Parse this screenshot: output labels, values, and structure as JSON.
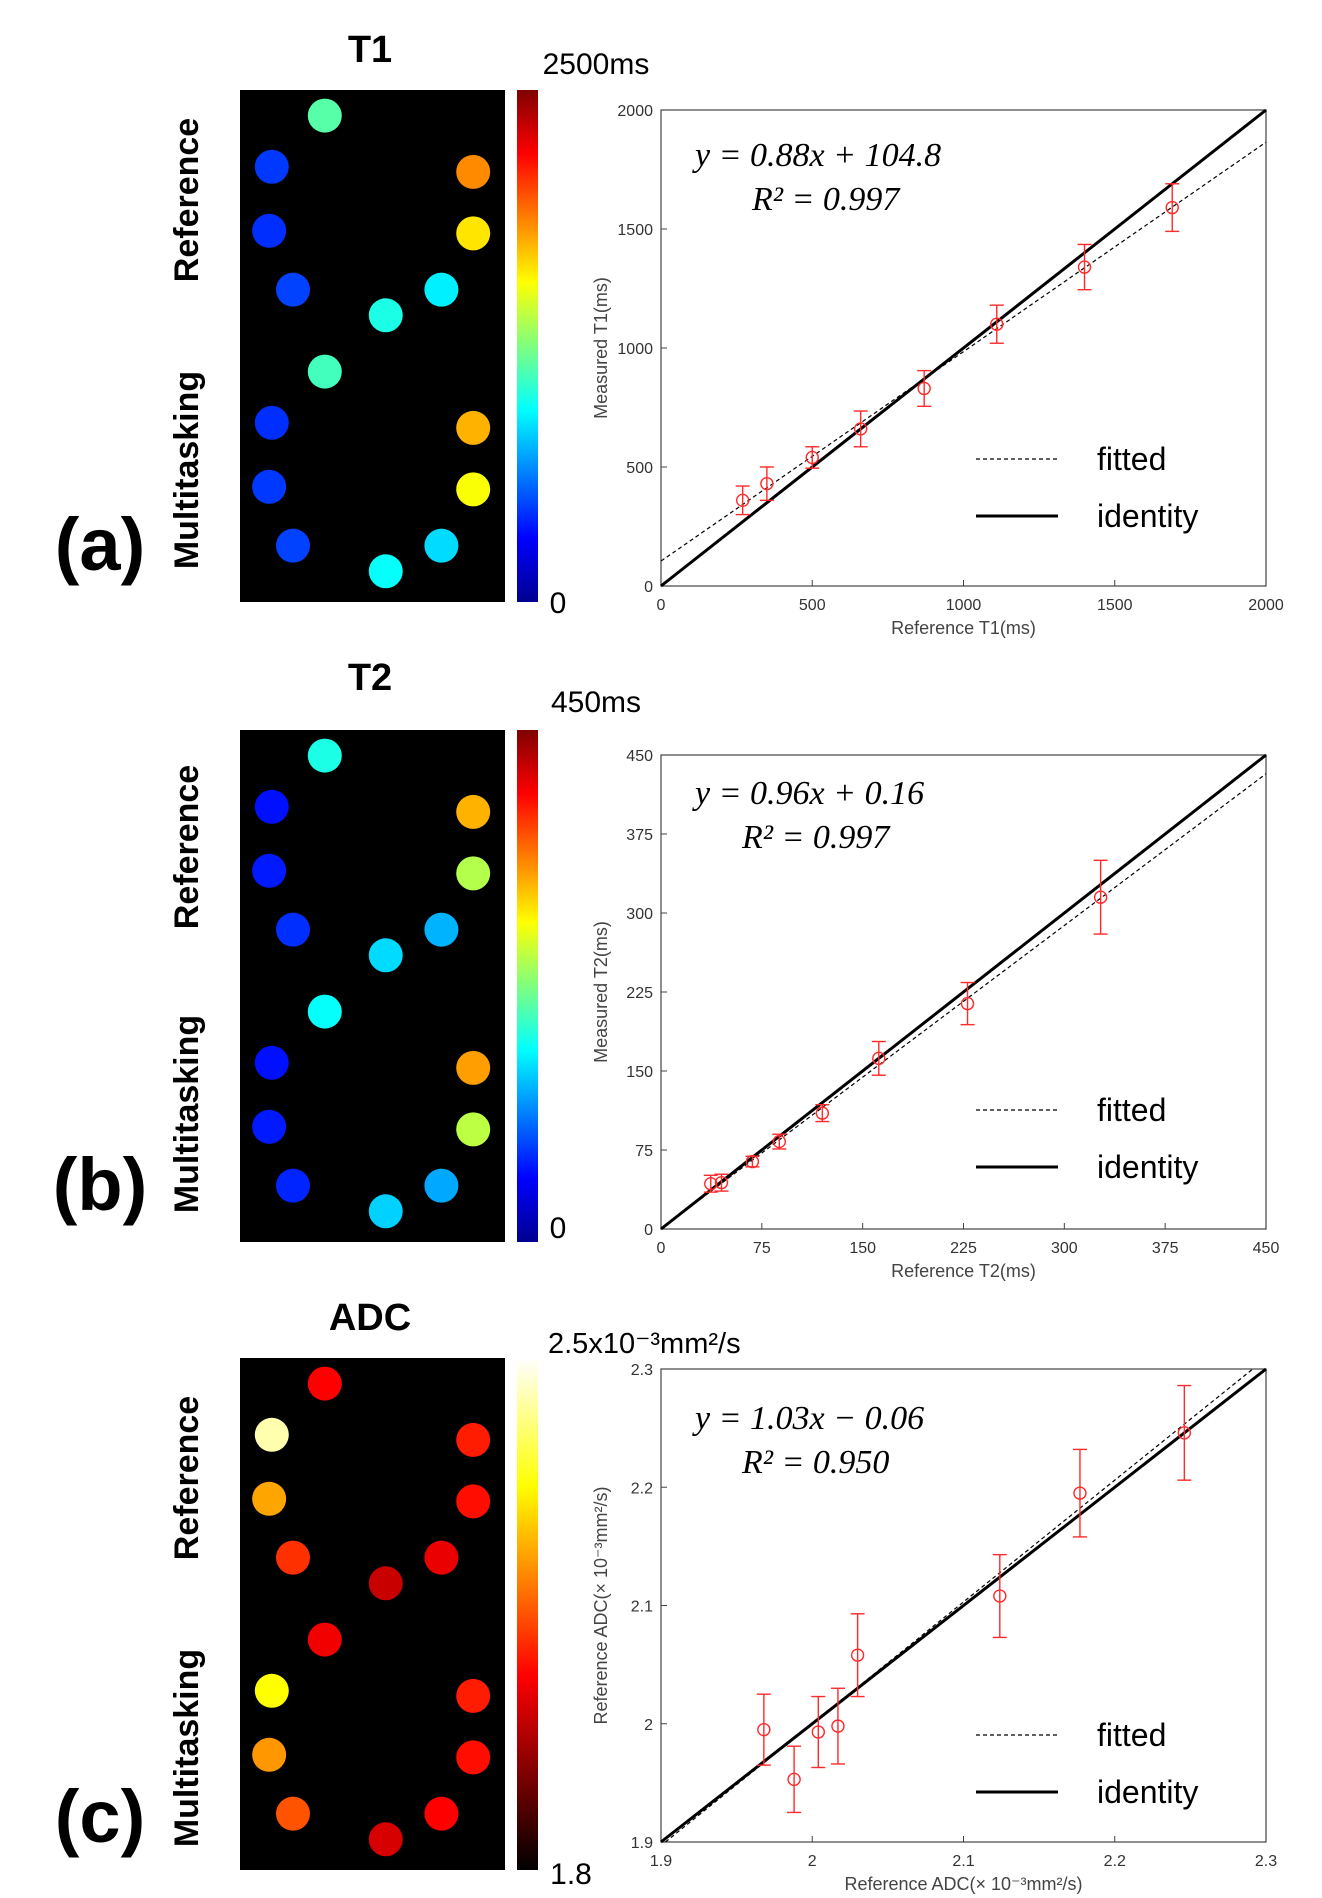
{
  "panels": [
    {
      "panel_label": "(a)",
      "map_title": "T1",
      "colorbar_max": "2500ms",
      "colorbar_min": "0",
      "row_top": "Reference",
      "row_bottom": "Multitasking",
      "colormap": "jet",
      "phantom_values": {
        "reference": [
          0.18,
          0.17,
          0.19,
          0.74,
          0.65,
          0.36,
          0.4,
          0.46
        ],
        "multitasking": [
          0.17,
          0.18,
          0.19,
          0.7,
          0.62,
          0.34,
          0.38,
          0.44
        ]
      },
      "equation": "y = 0.88x + 104.8",
      "r2": "R² = 0.997",
      "legend": {
        "fitted": "fitted",
        "identity": "identity"
      }
    },
    {
      "panel_label": "(b)",
      "map_title": "T2",
      "colorbar_max": "450ms",
      "colorbar_min": "0",
      "row_top": "Reference",
      "row_bottom": "Multitasking",
      "colormap": "jet",
      "phantom_values": {
        "reference": [
          0.14,
          0.15,
          0.17,
          0.7,
          0.55,
          0.3,
          0.34,
          0.4
        ],
        "multitasking": [
          0.14,
          0.15,
          0.16,
          0.72,
          0.56,
          0.29,
          0.33,
          0.38
        ]
      },
      "equation": "y = 0.96x + 0.16",
      "r2": "R² = 0.997",
      "legend": {
        "fitted": "fitted",
        "identity": "identity"
      }
    },
    {
      "panel_label": "(c)",
      "map_title": "ADC",
      "colorbar_max": "2.5x10⁻³mm²/s",
      "colorbar_min": "1.8",
      "row_top": "Reference",
      "row_bottom": "Multitasking",
      "colormap": "hot",
      "phantom_values": {
        "reference": [
          0.92,
          0.62,
          0.45,
          0.42,
          0.4,
          0.35,
          0.3,
          0.38
        ],
        "multitasking": [
          0.75,
          0.6,
          0.5,
          0.42,
          0.4,
          0.38,
          0.32,
          0.36
        ]
      },
      "equation": "y = 1.03x − 0.06",
      "r2": "R² = 0.950",
      "legend": {
        "fitted": "fitted",
        "identity": "identity"
      }
    }
  ],
  "chart_data": [
    {
      "type": "scatter",
      "xlabel": "Reference T1(ms)",
      "ylabel": "Measured T1(ms)",
      "xlim": [
        0,
        2000
      ],
      "ylim": [
        0,
        2000
      ],
      "xticks": [
        0,
        500,
        1000,
        1500,
        2000
      ],
      "yticks": [
        0,
        500,
        1000,
        1500,
        2000
      ],
      "x": [
        270,
        350,
        500,
        660,
        870,
        1110,
        1400,
        1690
      ],
      "y": [
        360,
        430,
        540,
        660,
        830,
        1100,
        1340,
        1590
      ],
      "err": [
        60,
        70,
        45,
        75,
        75,
        80,
        95,
        100
      ],
      "fit": {
        "slope": 0.88,
        "intercept": 104.8
      },
      "point_color": "#ff2a2a"
    },
    {
      "type": "scatter",
      "xlabel": "Reference T2(ms)",
      "ylabel": "Measured T2(ms)",
      "xlim": [
        0,
        450
      ],
      "ylim": [
        0,
        450
      ],
      "xticks": [
        0,
        75,
        150,
        225,
        300,
        375,
        450
      ],
      "yticks": [
        0,
        75,
        150,
        225,
        300,
        375,
        450
      ],
      "x": [
        37,
        45,
        68,
        88,
        120,
        162,
        228,
        327
      ],
      "y": [
        43,
        44,
        64,
        83,
        110,
        162,
        214,
        315
      ],
      "err": [
        8,
        8,
        5,
        7,
        8,
        16,
        20,
        35
      ],
      "fit": {
        "slope": 0.96,
        "intercept": 0.16
      },
      "point_color": "#ff2a2a"
    },
    {
      "type": "scatter",
      "xlabel": "Reference ADC(× 10⁻³mm²/s)",
      "ylabel": "Reference ADC(× 10⁻³mm²/s)",
      "xlim": [
        1.9,
        2.3
      ],
      "ylim": [
        1.9,
        2.3
      ],
      "xticks": [
        1.9,
        2.0,
        2.1,
        2.2,
        2.3
      ],
      "yticks": [
        1.9,
        2.0,
        2.1,
        2.2,
        2.3
      ],
      "xticklabels": [
        "1.9",
        "2",
        "2.1",
        "2.2",
        "2.3"
      ],
      "yticklabels": [
        "1.9",
        "2",
        "2.1",
        "2.2",
        "2.3"
      ],
      "x": [
        1.968,
        1.988,
        2.004,
        2.017,
        2.03,
        2.124,
        2.177,
        2.246
      ],
      "y": [
        1.995,
        1.953,
        1.993,
        1.998,
        2.058,
        2.108,
        2.195,
        2.246
      ],
      "err": [
        0.03,
        0.028,
        0.03,
        0.032,
        0.035,
        0.035,
        0.037,
        0.04
      ],
      "fit": {
        "slope": 1.03,
        "intercept": -0.06
      },
      "point_color": "#ff2a2a"
    }
  ]
}
